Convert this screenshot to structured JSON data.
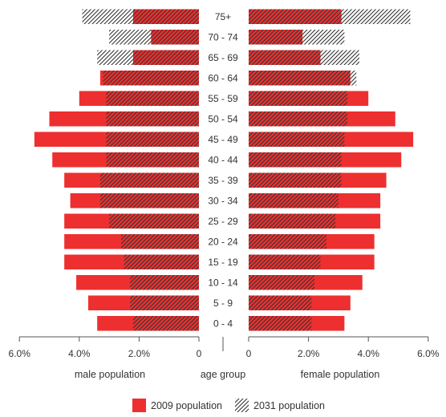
{
  "colors": {
    "pop2009": "#ee2f2f",
    "hatch": "#333333",
    "axis": "#555555",
    "text": "#333333"
  },
  "chart_data": {
    "type": "bar",
    "orientation": "horizontal-butterfly",
    "age_groups": [
      "0 - 4",
      "5 - 9",
      "10 - 14",
      "15 - 19",
      "20 - 24",
      "25 - 29",
      "30 - 34",
      "35 - 39",
      "40 - 44",
      "45 - 49",
      "50 - 54",
      "55 - 59",
      "60 - 64",
      "65 - 69",
      "70 - 74",
      "75+"
    ],
    "series": [
      {
        "name": "2009 population",
        "style": "solid-red",
        "male": [
          3.4,
          3.7,
          4.1,
          4.5,
          4.5,
          4.5,
          4.3,
          4.5,
          4.9,
          5.5,
          5.0,
          4.0,
          3.3,
          2.2,
          1.6,
          2.2
        ],
        "female": [
          3.2,
          3.4,
          3.8,
          4.2,
          4.2,
          4.4,
          4.4,
          4.6,
          5.1,
          5.5,
          4.9,
          4.0,
          3.4,
          2.4,
          1.8,
          3.1
        ]
      },
      {
        "name": "2031 population",
        "style": "hatched",
        "male": [
          2.2,
          2.3,
          2.3,
          2.5,
          2.6,
          3.0,
          3.3,
          3.3,
          3.1,
          3.1,
          3.1,
          3.1,
          3.2,
          3.4,
          3.0,
          3.9
        ],
        "female": [
          2.1,
          2.1,
          2.2,
          2.4,
          2.6,
          2.9,
          3.0,
          3.1,
          3.1,
          3.2,
          3.3,
          3.3,
          3.6,
          3.7,
          3.2,
          5.4
        ]
      }
    ],
    "xlim": [
      0,
      6
    ],
    "male_ticks": [
      "6.0%",
      "4.0%",
      "2.0%",
      "0"
    ],
    "female_ticks": [
      "0",
      "2.0%",
      "4.0%",
      "6.0%"
    ],
    "tick_values": [
      6,
      4,
      2,
      0
    ],
    "left_xlabel": "male population",
    "right_xlabel": "female population",
    "center_xlabel": "age group",
    "legend": [
      {
        "label": "2009 population",
        "style": "solid"
      },
      {
        "label": "2031 population",
        "style": "hatched"
      }
    ],
    "legend_position": "bottom-center"
  }
}
